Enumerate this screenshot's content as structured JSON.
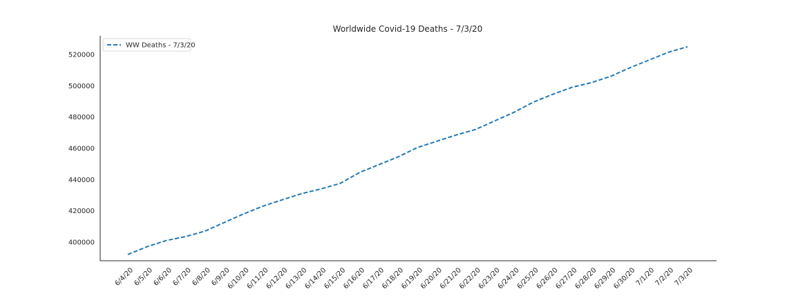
{
  "chart_data": {
    "type": "line",
    "title": "Worldwide Covid-19 Deaths - 7/3/20",
    "xlabel": "",
    "ylabel": "",
    "categories": [
      "6/4/20",
      "6/5/20",
      "6/6/20",
      "6/7/20",
      "6/8/20",
      "6/9/20",
      "6/10/20",
      "6/11/20",
      "6/12/20",
      "6/13/20",
      "6/14/20",
      "6/15/20",
      "6/16/20",
      "6/17/20",
      "6/18/20",
      "6/19/20",
      "6/20/20",
      "6/21/20",
      "6/22/20",
      "6/23/20",
      "6/24/20",
      "6/25/20",
      "6/26/20",
      "6/27/20",
      "6/28/20",
      "6/29/20",
      "6/30/20",
      "7/1/20",
      "7/2/20",
      "7/3/20"
    ],
    "series": [
      {
        "name": "WW Deaths - 7/3/20",
        "color": "#1f77b4",
        "line_style": "dashed",
        "values": [
          392000,
          397000,
          401000,
          403500,
          407000,
          412500,
          418000,
          423000,
          427000,
          431000,
          434000,
          437500,
          444500,
          449500,
          454500,
          460500,
          464500,
          468500,
          472000,
          477500,
          483000,
          489500,
          494500,
          499000,
          502000,
          506000,
          511500,
          516500,
          521500,
          525000
        ]
      }
    ],
    "yticks": [
      400000,
      420000,
      440000,
      460000,
      480000,
      500000,
      520000
    ],
    "ylim": [
      388000,
      532000
    ],
    "grid": false,
    "legend_position": "top-left"
  }
}
